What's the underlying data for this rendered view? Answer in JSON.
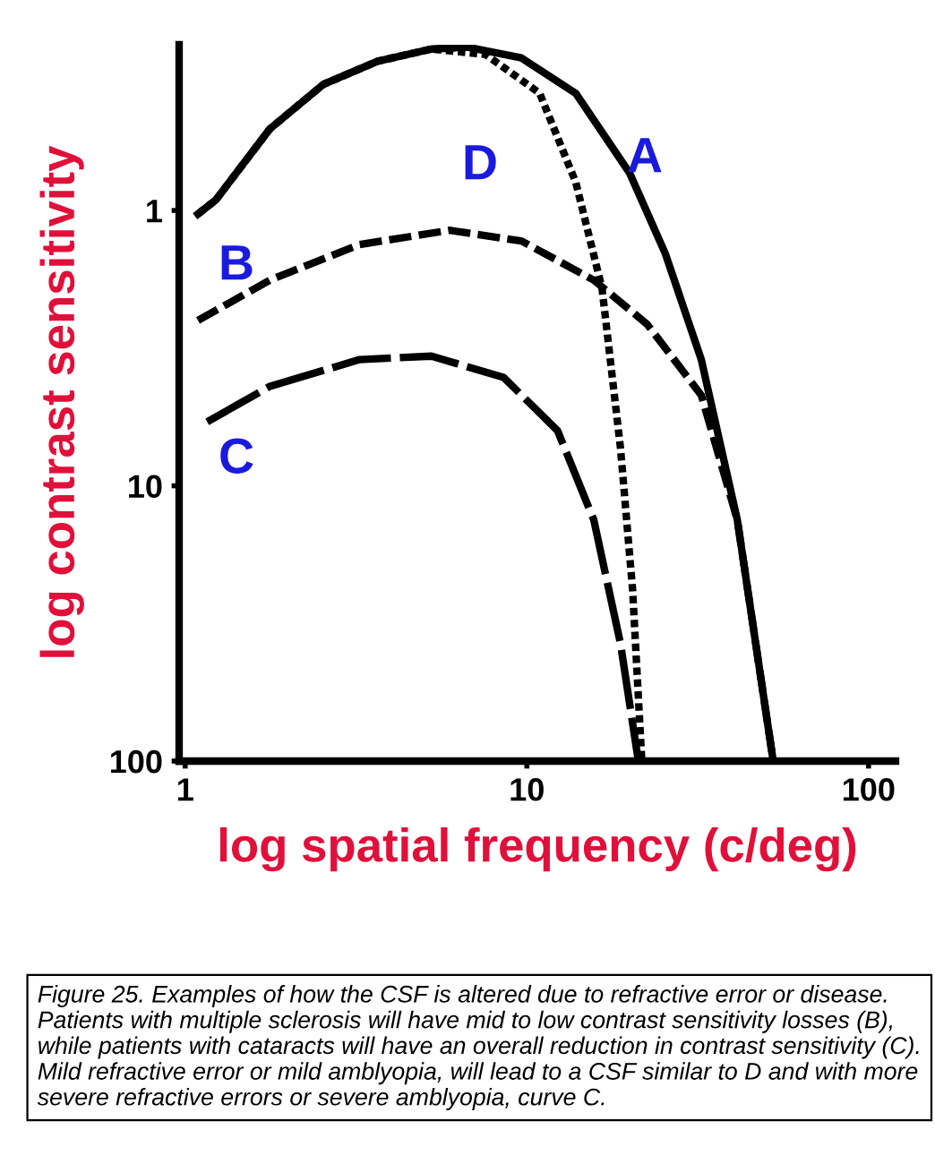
{
  "chart_data": {
    "type": "line",
    "xlabel": "log spatial frequency (c/deg)",
    "ylabel": "log contrast sensitivity",
    "log": "xy",
    "xlim": [
      0.96,
      120
    ],
    "ylim": [
      100,
      0.25
    ],
    "xticks": [
      1,
      10,
      100
    ],
    "yticks": [
      1,
      10,
      100
    ],
    "grid": false,
    "legend": false,
    "marker": "none",
    "series": [
      {
        "name": "A",
        "color": "#000000",
        "line_style": "solid",
        "x": [
          1.09,
          1.23,
          1.77,
          2.54,
          3.66,
          5.26,
          6.7,
          9.64,
          13.9,
          20.0,
          25.4,
          32.4,
          41.3,
          52.6
        ],
        "values": [
          1.03,
          0.915,
          0.505,
          0.348,
          0.287,
          0.259,
          0.255,
          0.279,
          0.375,
          0.732,
          1.43,
          3.48,
          13.3,
          100
        ]
      },
      {
        "name": "B",
        "color": "#000000",
        "line_style": "dashed",
        "x": [
          1.09,
          1.77,
          3.24,
          5.94,
          9.64,
          15.7,
          22.5,
          32.4,
          41.3,
          52.6
        ],
        "values": [
          2.51,
          1.79,
          1.33,
          1.18,
          1.29,
          1.79,
          2.59,
          4.69,
          13.3,
          100
        ]
      },
      {
        "name": "C",
        "color": "#000000",
        "line_style": "longdash",
        "x": [
          1.16,
          1.77,
          3.24,
          5.26,
          8.55,
          12.3,
          15.7,
          18.8,
          21.2
        ],
        "values": [
          5.86,
          4.35,
          3.48,
          3.38,
          4.04,
          6.31,
          13.3,
          37.5,
          100
        ]
      },
      {
        "name": "D",
        "color": "#000000",
        "line_style": "dotted",
        "x": [
          1.09,
          1.23,
          1.77,
          2.54,
          3.66,
          5.26,
          7.57,
          10.9,
          13.9,
          16.6,
          18.8,
          20.4,
          21.7
        ],
        "values": [
          1.03,
          0.915,
          0.505,
          0.348,
          0.287,
          0.259,
          0.271,
          0.375,
          0.789,
          1.92,
          7.32,
          24.0,
          100
        ]
      }
    ],
    "annotations": [
      "Figure 25. Examples of how the CSF is altered due to refractive error or disease.  Patients with multiple sclerosis will have mid to low contrast sensitivity losses (B), while patients with cataracts will have an overall reduction in contrast sensitivity (C). Mild refractive error or mild amblyopia, will lead to a CSF similar to D and with more severe refractive errors or severe amblyopia, curve C."
    ]
  }
}
